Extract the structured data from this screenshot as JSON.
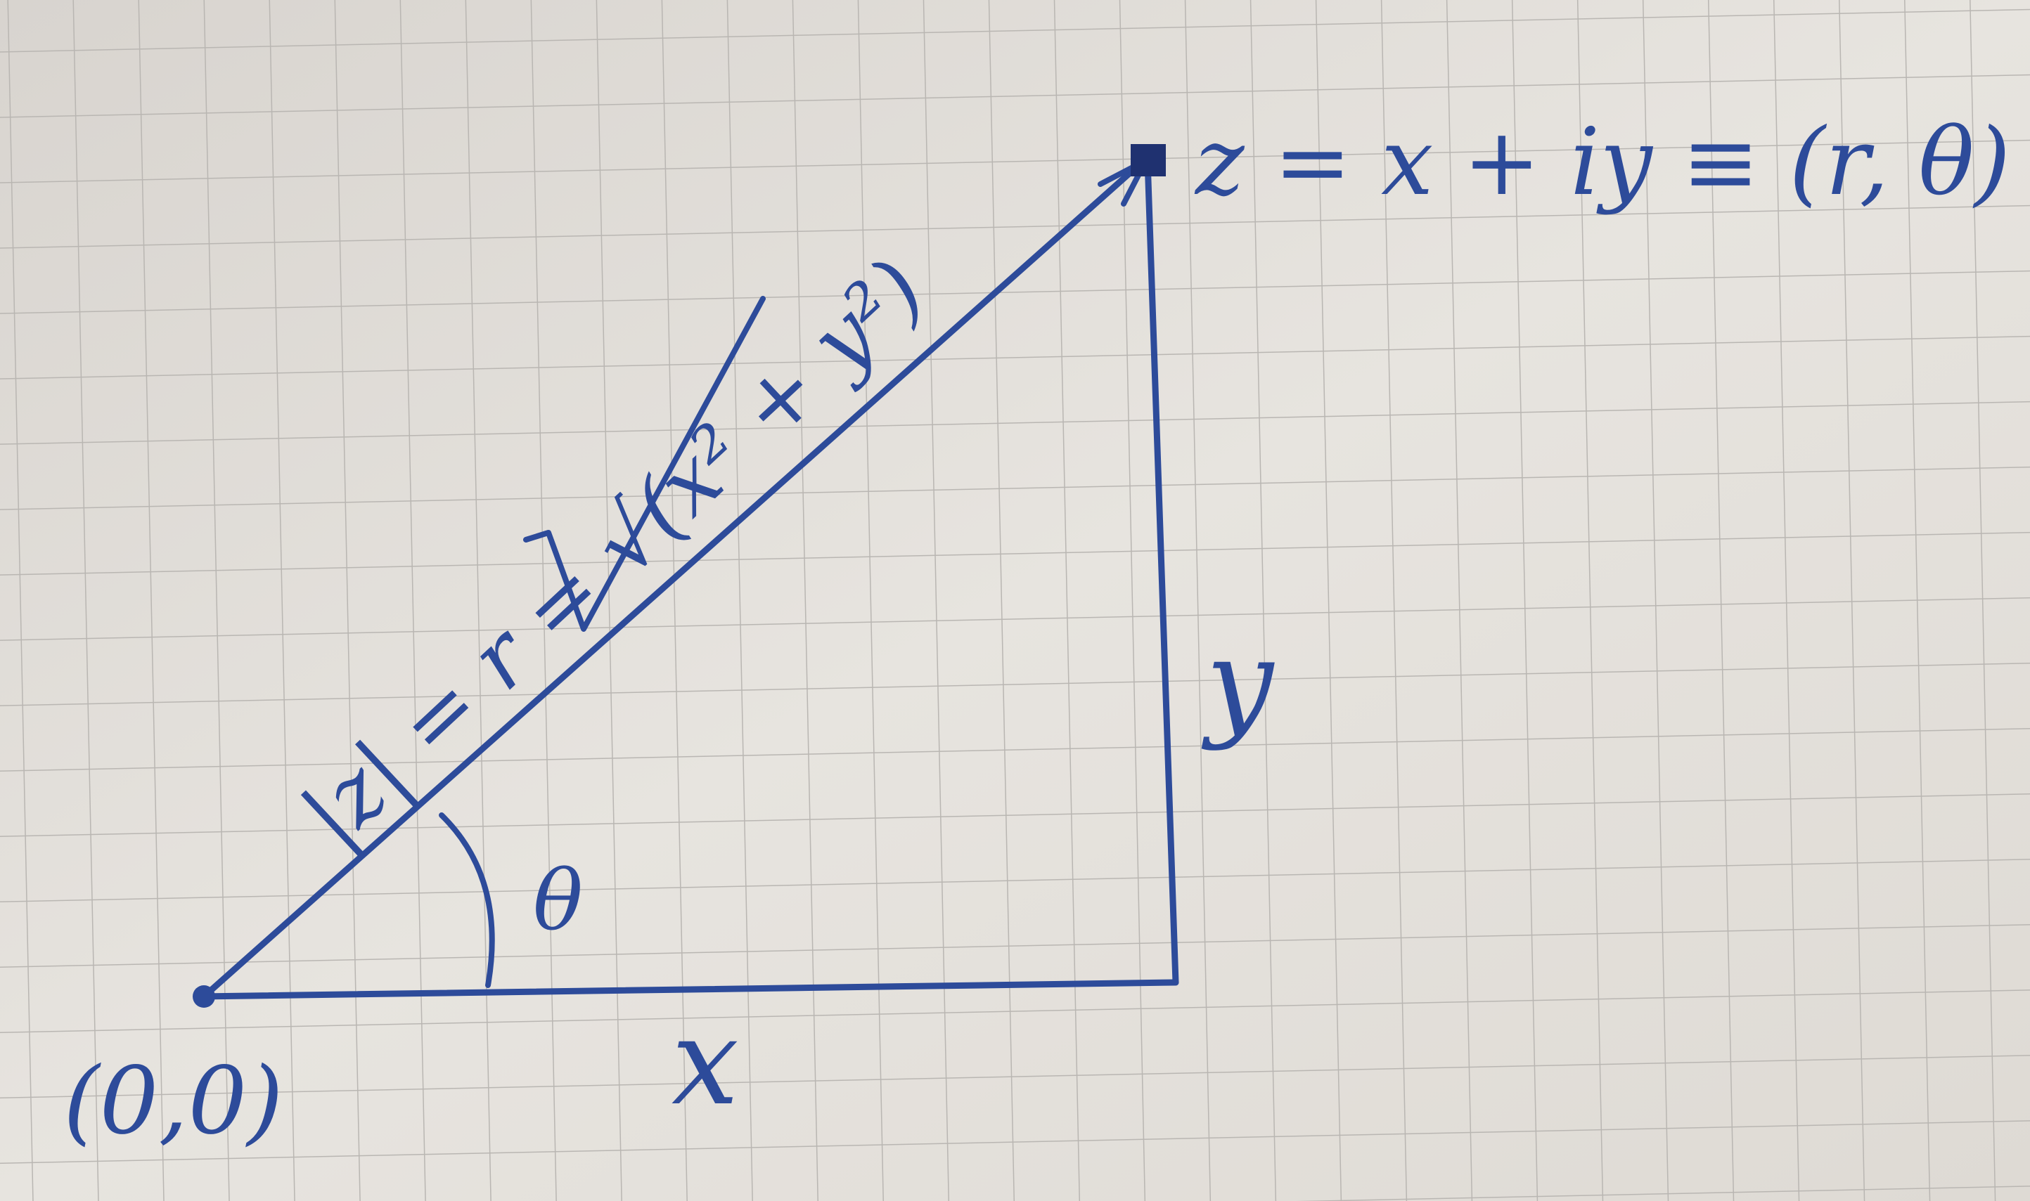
{
  "labels": {
    "point": "z = x + iy ≡ (r, θ)",
    "hypotenuse": "|z| = r = √(x² + y²)",
    "angle": "θ",
    "vertical_side": "y",
    "horizontal_side": "x",
    "origin": "(0,0)"
  },
  "colors": {
    "ink": "#2d4b9a",
    "paper": "#e4e1dc",
    "grid": "#b9b6b2"
  }
}
